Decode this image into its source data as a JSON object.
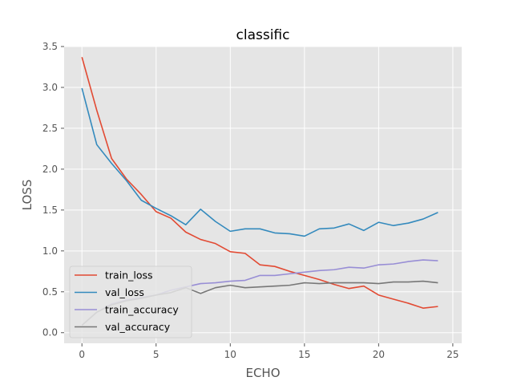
{
  "chart_data": {
    "type": "line",
    "title": "classific",
    "xlabel": "ECHO",
    "ylabel": "LOSS",
    "xlim": [
      -1.2,
      25.6
    ],
    "ylim": [
      -0.13,
      3.5
    ],
    "xticks": [
      0,
      5,
      10,
      15,
      20,
      25
    ],
    "xtick_labels": [
      "0",
      "5",
      "10",
      "15",
      "20",
      "25"
    ],
    "yticks": [
      0.0,
      0.5,
      1.0,
      1.5,
      2.0,
      2.5,
      3.0,
      3.5
    ],
    "ytick_labels": [
      "0.0",
      "0.5",
      "1.0",
      "1.5",
      "2.0",
      "2.5",
      "3.0",
      "3.5"
    ],
    "grid": true,
    "legend_position": "lower-left",
    "x": [
      0,
      1,
      2,
      3,
      4,
      5,
      6,
      7,
      8,
      9,
      10,
      11,
      12,
      13,
      14,
      15,
      16,
      17,
      18,
      19,
      20,
      21,
      22,
      23,
      24
    ],
    "series": [
      {
        "name": "train_loss",
        "color": "#E24A33",
        "values": [
          3.37,
          2.72,
          2.13,
          1.88,
          1.69,
          1.48,
          1.4,
          1.23,
          1.14,
          1.09,
          0.99,
          0.97,
          0.83,
          0.81,
          0.75,
          0.7,
          0.65,
          0.59,
          0.54,
          0.57,
          0.46,
          0.41,
          0.36,
          0.3,
          0.32
        ]
      },
      {
        "name": "val_loss",
        "color": "#348ABD",
        "values": [
          2.99,
          2.3,
          2.07,
          1.86,
          1.62,
          1.52,
          1.43,
          1.32,
          1.51,
          1.36,
          1.24,
          1.27,
          1.27,
          1.22,
          1.21,
          1.18,
          1.27,
          1.28,
          1.33,
          1.25,
          1.35,
          1.31,
          1.34,
          1.39,
          1.47
        ]
      },
      {
        "name": "train_accuracy",
        "color": "#988ED5",
        "values": [
          0.09,
          0.25,
          0.35,
          0.4,
          0.43,
          0.46,
          0.52,
          0.56,
          0.6,
          0.61,
          0.63,
          0.64,
          0.7,
          0.7,
          0.72,
          0.74,
          0.76,
          0.77,
          0.8,
          0.79,
          0.83,
          0.84,
          0.87,
          0.89,
          0.88
        ]
      },
      {
        "name": "val_accuracy",
        "color": "#777777",
        "values": [
          0.09,
          0.25,
          0.34,
          0.39,
          0.42,
          0.46,
          0.49,
          0.55,
          0.48,
          0.55,
          0.58,
          0.55,
          0.56,
          0.57,
          0.58,
          0.61,
          0.6,
          0.61,
          0.61,
          0.61,
          0.6,
          0.62,
          0.62,
          0.63,
          0.61
        ]
      }
    ]
  }
}
